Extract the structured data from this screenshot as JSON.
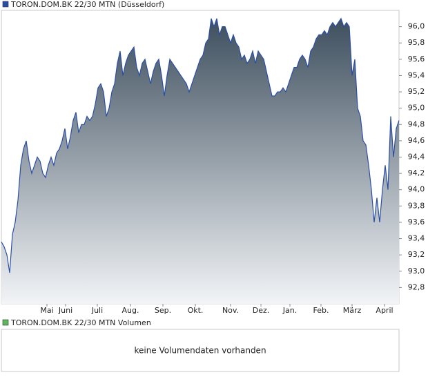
{
  "chart_data": {
    "type": "area",
    "series": [
      {
        "name": "TORON.DOM.BK 22/30 MTN (Düsseldorf)",
        "color": "#2a4ea8",
        "values": [
          93.36,
          93.3,
          93.2,
          92.98,
          93.45,
          93.6,
          93.87,
          94.3,
          94.5,
          94.6,
          94.35,
          94.2,
          94.3,
          94.4,
          94.35,
          94.2,
          94.15,
          94.3,
          94.4,
          94.3,
          94.45,
          94.5,
          94.6,
          94.75,
          94.5,
          94.65,
          94.85,
          94.95,
          94.7,
          94.8,
          94.8,
          94.9,
          94.85,
          94.9,
          95.05,
          95.25,
          95.3,
          95.2,
          94.9,
          95.0,
          95.2,
          95.3,
          95.55,
          95.7,
          95.4,
          95.55,
          95.65,
          95.7,
          95.75,
          95.5,
          95.4,
          95.55,
          95.6,
          95.45,
          95.3,
          95.45,
          95.55,
          95.6,
          95.4,
          95.15,
          95.4,
          95.6,
          95.55,
          95.5,
          95.45,
          95.4,
          95.35,
          95.3,
          95.2,
          95.3,
          95.4,
          95.5,
          95.6,
          95.65,
          95.8,
          95.85,
          96.1,
          96.0,
          96.1,
          95.9,
          96.0,
          96.0,
          95.9,
          95.8,
          95.9,
          95.8,
          95.75,
          95.6,
          95.65,
          95.55,
          95.6,
          95.7,
          95.55,
          95.7,
          95.65,
          95.6,
          95.45,
          95.3,
          95.15,
          95.15,
          95.2,
          95.2,
          95.25,
          95.2,
          95.3,
          95.4,
          95.5,
          95.5,
          95.6,
          95.65,
          95.6,
          95.5,
          95.7,
          95.75,
          95.85,
          95.9,
          95.9,
          95.95,
          95.9,
          96.0,
          96.05,
          96.0,
          96.05,
          96.1,
          96.0,
          96.05,
          96.0,
          95.4,
          95.6,
          95.0,
          94.9,
          94.6,
          94.55,
          94.3,
          94.0,
          93.6,
          93.9,
          93.6,
          94.0,
          94.3,
          94.0,
          94.9,
          94.4,
          94.75,
          94.85
        ]
      }
    ],
    "area_colors": [
      "#3e4f5e",
      "#f2f4f7"
    ],
    "xlim": [
      0,
      144
    ],
    "xticks": [
      {
        "value": 16.5,
        "label": "Mai"
      },
      {
        "value": 23.25,
        "label": "Juni"
      },
      {
        "value": 34.75,
        "label": "Juli"
      },
      {
        "value": 46.75,
        "label": "Aug."
      },
      {
        "value": 58.5,
        "label": "Sep."
      },
      {
        "value": 70.25,
        "label": "Okt."
      },
      {
        "value": 83,
        "label": "Nov."
      },
      {
        "value": 94,
        "label": "Dez."
      },
      {
        "value": 104.5,
        "label": "Jan."
      },
      {
        "value": 115.75,
        "label": "Feb."
      },
      {
        "value": 127,
        "label": "März"
      },
      {
        "value": 138.75,
        "label": "April"
      }
    ],
    "ylim": [
      92.6,
      96.2
    ],
    "yticks": [
      {
        "value": 92.8,
        "label": "92,8"
      },
      {
        "value": 93.0,
        "label": "93,0"
      },
      {
        "value": 93.2,
        "label": "93,2"
      },
      {
        "value": 93.4,
        "label": "93,4"
      },
      {
        "value": 93.6,
        "label": "93,6"
      },
      {
        "value": 93.8,
        "label": "93,8"
      },
      {
        "value": 94.0,
        "label": "94,0"
      },
      {
        "value": 94.2,
        "label": "94,2"
      },
      {
        "value": 94.4,
        "label": "94,4"
      },
      {
        "value": 94.6,
        "label": "94,6"
      },
      {
        "value": 94.8,
        "label": "94,8"
      },
      {
        "value": 95.0,
        "label": "95,0"
      },
      {
        "value": 95.2,
        "label": "95,2"
      },
      {
        "value": 95.4,
        "label": "95,4"
      },
      {
        "value": 95.6,
        "label": "95,6"
      },
      {
        "value": 95.8,
        "label": "95,8"
      },
      {
        "value": 96.0,
        "label": "96,0"
      }
    ],
    "grid": false
  },
  "volume_panel": {
    "legend": "TORON.DOM.BK 22/30 MTN Volumen",
    "color": "#5cb85c",
    "message": "keine Volumendaten vorhanden"
  }
}
